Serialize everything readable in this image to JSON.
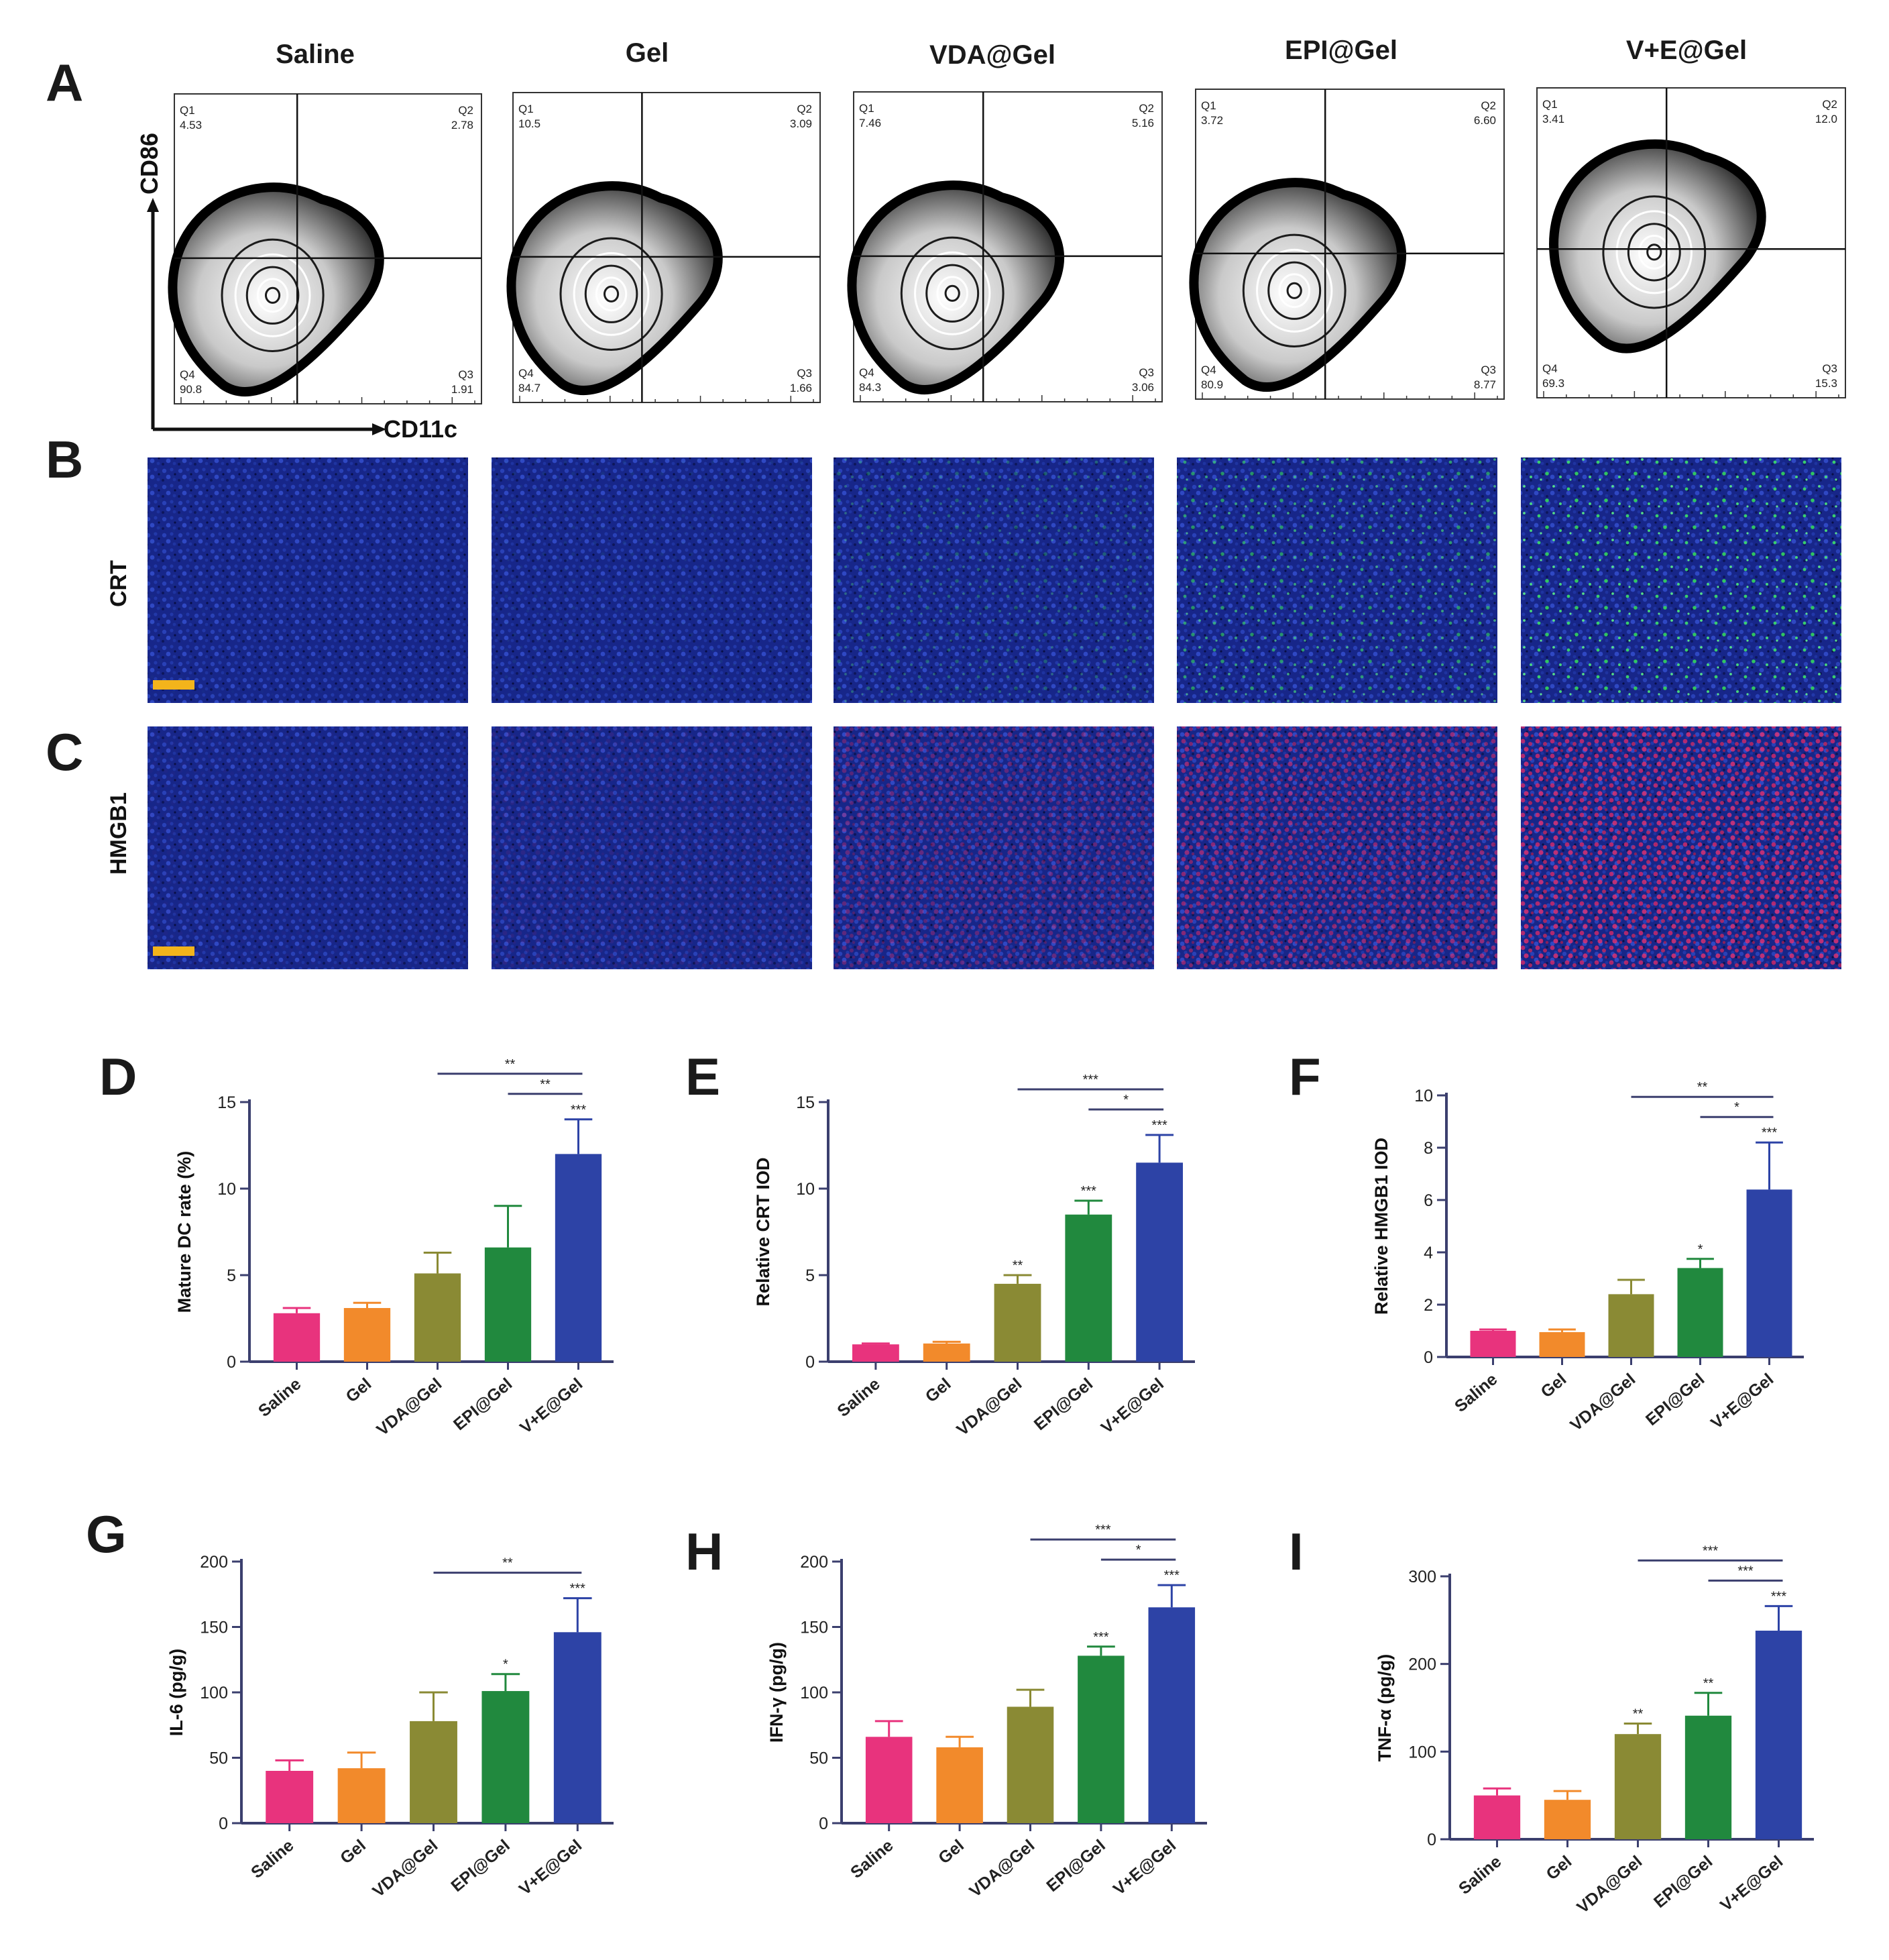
{
  "panels": {
    "A": "A",
    "B": "B",
    "C": "C",
    "D": "D",
    "E": "E",
    "F": "F",
    "G": "G",
    "H": "H",
    "I": "I"
  },
  "groups": [
    "Saline",
    "Gel",
    "VDA@Gel",
    "EPI@Gel",
    "V+E@Gel"
  ],
  "colors": [
    "#e8337d",
    "#f28a2b",
    "#8a8a34",
    "#21893e",
    "#2d43a6"
  ],
  "flow": {
    "x_axis": "CD11c",
    "y_axis": "CD86",
    "plots": [
      {
        "group": "Saline",
        "q1": "4.53",
        "q2": "2.78",
        "q3": "1.91",
        "q4": "90.8"
      },
      {
        "group": "Gel",
        "q1": "10.5",
        "q2": "3.09",
        "q3": "1.66",
        "q4": "84.7"
      },
      {
        "group": "VDA@Gel",
        "q1": "7.46",
        "q2": "5.16",
        "q3": "3.06",
        "q4": "84.3"
      },
      {
        "group": "EPI@Gel",
        "q1": "3.72",
        "q2": "6.60",
        "q3": "8.77",
        "q4": "80.9"
      },
      {
        "group": "V+E@Gel",
        "q1": "3.41",
        "q2": "12.0",
        "q3": "15.3",
        "q4": "69.3"
      }
    ]
  },
  "imaging": {
    "rows": [
      {
        "label": "CRT",
        "stain": "green",
        "intensity": [
          0.02,
          0.06,
          0.32,
          0.62,
          0.9
        ]
      },
      {
        "label": "HMGB1",
        "stain": "red",
        "intensity": [
          0.03,
          0.1,
          0.38,
          0.6,
          0.82
        ]
      }
    ]
  },
  "chart_data": [
    {
      "type": "bar",
      "panel": "D",
      "ylabel": "Mature DC rate (%)",
      "ylim": [
        0,
        15
      ],
      "yticks": [
        0,
        5,
        10,
        15
      ],
      "categories": [
        "Saline",
        "Gel",
        "VDA@Gel",
        "EPI@Gel",
        "V+E@Gel"
      ],
      "values": [
        2.8,
        3.1,
        5.1,
        6.6,
        12.0
      ],
      "errors": [
        0.3,
        0.3,
        1.2,
        2.4,
        2.0
      ],
      "bar_marks": [
        "",
        "",
        "",
        "",
        "***"
      ],
      "comparisons": [
        {
          "from": 2,
          "to": 4,
          "label": "**"
        },
        {
          "from": 3,
          "to": 4,
          "label": "**"
        }
      ]
    },
    {
      "type": "bar",
      "panel": "E",
      "ylabel": "Relative CRT IOD",
      "ylim": [
        0,
        15
      ],
      "yticks": [
        0,
        5,
        10,
        15
      ],
      "categories": [
        "Saline",
        "Gel",
        "VDA@Gel",
        "EPI@Gel",
        "V+E@Gel"
      ],
      "values": [
        1.0,
        1.05,
        4.5,
        8.5,
        11.5
      ],
      "errors": [
        0.05,
        0.1,
        0.5,
        0.8,
        1.6
      ],
      "bar_marks": [
        "",
        "",
        "**",
        "***",
        "***"
      ],
      "comparisons": [
        {
          "from": 2,
          "to": 4,
          "label": "***"
        },
        {
          "from": 3,
          "to": 4,
          "label": "*"
        }
      ]
    },
    {
      "type": "bar",
      "panel": "F",
      "ylabel": "Relative HMGB1 IOD",
      "ylim": [
        0,
        10
      ],
      "yticks": [
        0,
        2,
        4,
        6,
        8,
        10
      ],
      "categories": [
        "Saline",
        "Gel",
        "VDA@Gel",
        "EPI@Gel",
        "V+E@Gel"
      ],
      "values": [
        1.0,
        0.95,
        2.4,
        3.4,
        6.4
      ],
      "errors": [
        0.05,
        0.1,
        0.55,
        0.35,
        1.8
      ],
      "bar_marks": [
        "",
        "",
        "",
        "*",
        "***"
      ],
      "comparisons": [
        {
          "from": 2,
          "to": 4,
          "label": "**"
        },
        {
          "from": 3,
          "to": 4,
          "label": "*"
        }
      ]
    },
    {
      "type": "bar",
      "panel": "G",
      "ylabel": "IL-6 (pg/g)",
      "ylim": [
        0,
        200
      ],
      "yticks": [
        0,
        50,
        100,
        150,
        200
      ],
      "categories": [
        "Saline",
        "Gel",
        "VDA@Gel",
        "EPI@Gel",
        "V+E@Gel"
      ],
      "values": [
        40,
        42,
        78,
        101,
        146
      ],
      "errors": [
        8,
        12,
        22,
        13,
        26
      ],
      "bar_marks": [
        "",
        "",
        "",
        "*",
        "***"
      ],
      "comparisons": [
        {
          "from": 2,
          "to": 4,
          "label": "**"
        }
      ]
    },
    {
      "type": "bar",
      "panel": "H",
      "ylabel": "IFN-γ (pg/g)",
      "ylim": [
        0,
        200
      ],
      "yticks": [
        0,
        50,
        100,
        150,
        200
      ],
      "categories": [
        "Saline",
        "Gel",
        "VDA@Gel",
        "EPI@Gel",
        "V+E@Gel"
      ],
      "values": [
        66,
        58,
        89,
        128,
        165
      ],
      "errors": [
        12,
        8,
        13,
        7,
        17
      ],
      "bar_marks": [
        "",
        "",
        "",
        "***",
        "***"
      ],
      "comparisons": [
        {
          "from": 2,
          "to": 4,
          "label": "***"
        },
        {
          "from": 3,
          "to": 4,
          "label": "*"
        }
      ]
    },
    {
      "type": "bar",
      "panel": "I",
      "ylabel": "TNF-α (pg/g)",
      "ylim": [
        0,
        300
      ],
      "yticks": [
        0,
        100,
        200,
        300
      ],
      "categories": [
        "Saline",
        "Gel",
        "VDA@Gel",
        "EPI@Gel",
        "V+E@Gel"
      ],
      "values": [
        50,
        45,
        120,
        141,
        238
      ],
      "errors": [
        8,
        10,
        12,
        26,
        28
      ],
      "bar_marks": [
        "",
        "",
        "**",
        "**",
        "***"
      ],
      "comparisons": [
        {
          "from": 2,
          "to": 4,
          "label": "***"
        },
        {
          "from": 3,
          "to": 4,
          "label": "***"
        }
      ]
    }
  ]
}
